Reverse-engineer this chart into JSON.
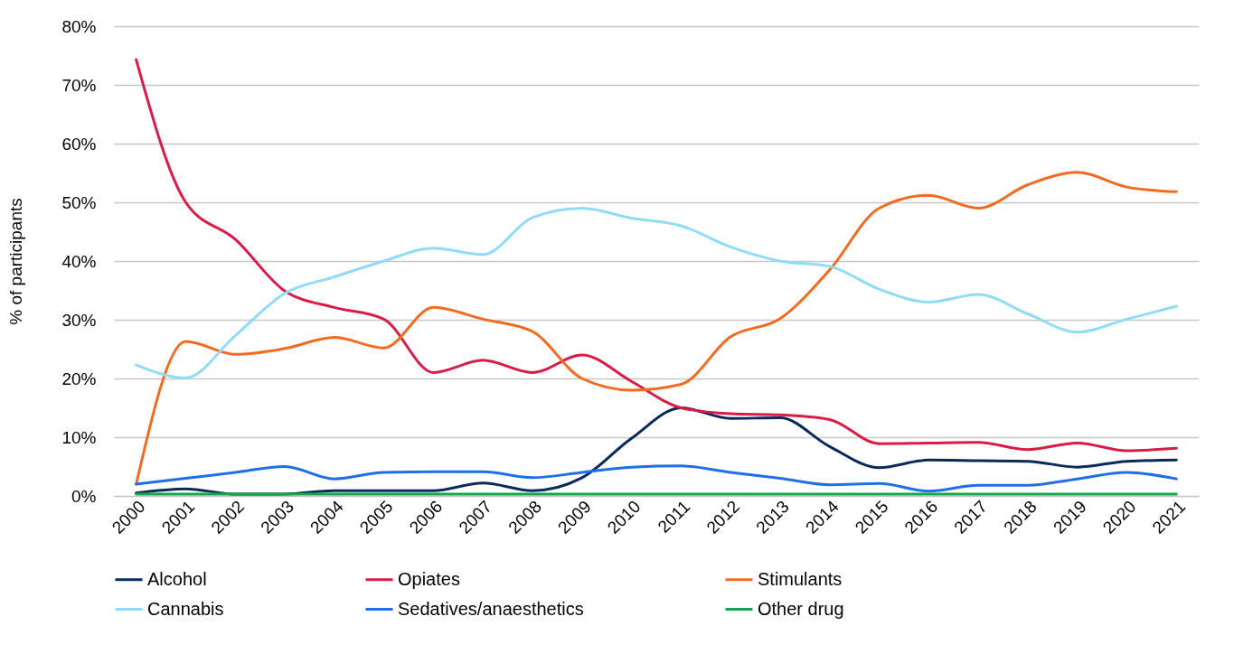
{
  "chart_data": {
    "type": "line",
    "ylabel": "% of participants",
    "categories": [
      "2000",
      "2001",
      "2002",
      "2003",
      "2004",
      "2005",
      "2006",
      "2007",
      "2008",
      "2009",
      "2010",
      "2011",
      "2012",
      "2013",
      "2014",
      "2015",
      "2016",
      "2017",
      "2018",
      "2019",
      "2020",
      "2021"
    ],
    "ylim": [
      0,
      80
    ],
    "yticks": [
      {
        "value": 0,
        "label": "0%"
      },
      {
        "value": 10,
        "label": "10%"
      },
      {
        "value": 20,
        "label": "20%"
      },
      {
        "value": 30,
        "label": "30%"
      },
      {
        "value": 40,
        "label": "40%"
      },
      {
        "value": 50,
        "label": "50%"
      },
      {
        "value": 60,
        "label": "60%"
      },
      {
        "value": 70,
        "label": "70%"
      },
      {
        "value": 80,
        "label": "80%"
      }
    ],
    "grid": "y",
    "legend": "bottom",
    "marker": "none",
    "line_style": "solid",
    "series": [
      {
        "name": "Alcohol",
        "color": "#0b2a5b",
        "values": [
          0.5,
          1.2,
          0.3,
          0.3,
          0.9,
          0.9,
          0.9,
          2.2,
          0.9,
          3.1,
          9.8,
          15,
          13.2,
          13.3,
          8.4,
          4.8,
          6.1,
          6.0,
          5.9,
          4.9,
          5.9,
          6.1
        ]
      },
      {
        "name": "Opiates",
        "color": "#d91c47",
        "values": [
          74.3,
          50,
          43.7,
          34.9,
          32.1,
          30.1,
          21,
          23.1,
          21,
          24,
          19.5,
          15,
          14,
          13.8,
          13,
          8.9,
          9,
          9.1,
          7.9,
          9,
          7.7,
          8.1
        ]
      },
      {
        "name": "Stimulants",
        "color": "#f26b21",
        "values": [
          2,
          26.3,
          24.1,
          25.1,
          27,
          25.2,
          32.1,
          30.1,
          28,
          20,
          18,
          19,
          27.1,
          30.2,
          38.5,
          49,
          51.2,
          49,
          53,
          55.1,
          52.6,
          51.8
        ]
      },
      {
        "name": "Cannabis",
        "color": "#8fdcf7",
        "values": [
          22.3,
          20.1,
          27.3,
          34.5,
          37.3,
          40,
          42.2,
          41.1,
          47.4,
          49,
          47.3,
          46,
          42.4,
          40,
          39.1,
          35.2,
          33,
          34.3,
          31,
          27.9,
          30.1,
          32.3
        ]
      },
      {
        "name": "Sedatives/anaesthetics",
        "color": "#1f6fe8",
        "values": [
          2,
          3,
          4,
          5,
          2.9,
          4,
          4.1,
          4.1,
          3.1,
          4,
          4.9,
          5.1,
          4,
          3,
          1.9,
          2.1,
          0.8,
          1.8,
          1.8,
          2.9,
          4,
          2.9
        ]
      },
      {
        "name": "Other drug",
        "color": "#12a84a",
        "values": [
          0.3,
          0.3,
          0.3,
          0.3,
          0.3,
          0.3,
          0.3,
          0.3,
          0.3,
          0.3,
          0.3,
          0.3,
          0.3,
          0.3,
          0.3,
          0.3,
          0.3,
          0.3,
          0.3,
          0.3,
          0.3,
          0.3
        ]
      }
    ]
  }
}
